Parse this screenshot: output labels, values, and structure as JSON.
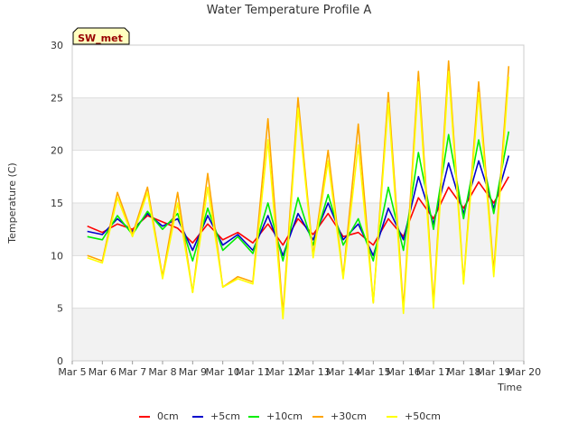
{
  "chart_data": {
    "type": "line",
    "title": "Water Temperature Profile A",
    "xlabel": "Time",
    "ylabel": "Temperature (C)",
    "ylim": [
      0,
      30
    ],
    "yticks": [
      0,
      5,
      10,
      15,
      20,
      25,
      30
    ],
    "xlim": [
      "Mar 5",
      "Mar 20"
    ],
    "xticks": [
      "Mar 5",
      "Mar 6",
      "Mar 7",
      "Mar 8",
      "Mar 9",
      "Mar 10",
      "Mar 11",
      "Mar 12",
      "Mar 13",
      "Mar 14",
      "Mar 15",
      "Mar 16",
      "Mar 17",
      "Mar 18",
      "Mar 19",
      "Mar 20"
    ],
    "grid": "horizontal bands",
    "legend_position": "bottom",
    "annotation": "SW_met",
    "series": [
      {
        "name": "0cm",
        "color": "#ff0000",
        "x": [
          "Mar 5 12:00",
          "Mar 6 00:00",
          "Mar 6 12:00",
          "Mar 7 00:00",
          "Mar 7 12:00",
          "Mar 8 00:00",
          "Mar 8 12:00",
          "Mar 9 00:00",
          "Mar 9 12:00",
          "Mar 10 00:00",
          "Mar 10 12:00",
          "Mar 11 00:00",
          "Mar 11 12:00",
          "Mar 12 00:00",
          "Mar 12 12:00",
          "Mar 13 00:00",
          "Mar 13 12:00",
          "Mar 14 00:00",
          "Mar 14 12:00",
          "Mar 15 00:00",
          "Mar 15 12:00",
          "Mar 16 00:00",
          "Mar 16 12:00",
          "Mar 17 00:00",
          "Mar 17 12:00",
          "Mar 18 00:00",
          "Mar 18 12:00",
          "Mar 19 00:00",
          "Mar 19 12:00"
        ],
        "y": [
          12.8,
          12.2,
          13.0,
          12.5,
          13.8,
          13.2,
          12.6,
          11.2,
          13.0,
          11.5,
          12.2,
          11.2,
          13.0,
          11.0,
          13.5,
          12.0,
          14.0,
          11.8,
          12.2,
          11.0,
          13.5,
          11.8,
          15.5,
          13.5,
          16.5,
          14.5,
          17.0,
          15.0,
          17.5
        ]
      },
      {
        "name": "+5cm",
        "color": "#0000cc",
        "x": [
          "Mar 5 12:00",
          "Mar 6 00:00",
          "Mar 6 12:00",
          "Mar 7 00:00",
          "Mar 7 12:00",
          "Mar 8 00:00",
          "Mar 8 12:00",
          "Mar 9 00:00",
          "Mar 9 12:00",
          "Mar 10 00:00",
          "Mar 10 12:00",
          "Mar 11 00:00",
          "Mar 11 12:00",
          "Mar 12 00:00",
          "Mar 12 12:00",
          "Mar 13 00:00",
          "Mar 13 12:00",
          "Mar 14 00:00",
          "Mar 14 12:00",
          "Mar 15 00:00",
          "Mar 15 12:00",
          "Mar 16 00:00",
          "Mar 16 12:00",
          "Mar 17 00:00",
          "Mar 17 12:00",
          "Mar 18 00:00",
          "Mar 18 12:00",
          "Mar 19 00:00",
          "Mar 19 12:00"
        ],
        "y": [
          12.3,
          12.0,
          13.5,
          12.3,
          14.0,
          12.8,
          13.5,
          10.5,
          13.8,
          11.0,
          12.0,
          10.5,
          13.8,
          10.0,
          14.0,
          11.5,
          15.0,
          11.5,
          13.0,
          10.0,
          14.5,
          11.5,
          17.5,
          13.0,
          18.8,
          14.0,
          19.0,
          14.5,
          19.5
        ]
      },
      {
        "name": "+10cm",
        "color": "#00ee00",
        "x": [
          "Mar 5 12:00",
          "Mar 6 00:00",
          "Mar 6 12:00",
          "Mar 7 00:00",
          "Mar 7 12:00",
          "Mar 8 00:00",
          "Mar 8 12:00",
          "Mar 9 00:00",
          "Mar 9 12:00",
          "Mar 10 00:00",
          "Mar 10 12:00",
          "Mar 11 00:00",
          "Mar 11 12:00",
          "Mar 12 00:00",
          "Mar 12 12:00",
          "Mar 13 00:00",
          "Mar 13 12:00",
          "Mar 14 00:00",
          "Mar 14 12:00",
          "Mar 15 00:00",
          "Mar 15 12:00",
          "Mar 16 00:00",
          "Mar 16 12:00",
          "Mar 17 00:00",
          "Mar 17 12:00",
          "Mar 18 00:00",
          "Mar 18 12:00",
          "Mar 19 00:00",
          "Mar 19 12:00"
        ],
        "y": [
          11.8,
          11.5,
          13.8,
          12.0,
          14.2,
          12.5,
          14.0,
          9.5,
          14.5,
          10.5,
          11.8,
          10.2,
          15.0,
          9.5,
          15.5,
          11.0,
          15.8,
          11.0,
          13.5,
          9.5,
          16.5,
          10.5,
          19.8,
          12.5,
          21.5,
          13.5,
          21.0,
          14.0,
          21.8
        ]
      },
      {
        "name": "+30cm",
        "color": "#ffa500",
        "x": [
          "Mar 5 12:00",
          "Mar 6 00:00",
          "Mar 6 12:00",
          "Mar 7 00:00",
          "Mar 7 12:00",
          "Mar 8 00:00",
          "Mar 8 12:00",
          "Mar 9 00:00",
          "Mar 9 12:00",
          "Mar 10 00:00",
          "Mar 10 12:00",
          "Mar 11 00:00",
          "Mar 11 12:00",
          "Mar 12 00:00",
          "Mar 12 12:00",
          "Mar 13 00:00",
          "Mar 13 12:00",
          "Mar 14 00:00",
          "Mar 14 12:00",
          "Mar 15 00:00",
          "Mar 15 12:00",
          "Mar 16 00:00",
          "Mar 16 12:00",
          "Mar 17 00:00",
          "Mar 17 12:00",
          "Mar 18 00:00",
          "Mar 18 12:00",
          "Mar 19 00:00",
          "Mar 19 12:00"
        ],
        "y": [
          10.0,
          9.5,
          16.0,
          12.0,
          16.5,
          8.0,
          16.0,
          6.5,
          17.8,
          7.0,
          8.0,
          7.5,
          23.0,
          4.5,
          25.0,
          10.0,
          20.0,
          8.0,
          22.5,
          5.5,
          25.5,
          5.0,
          27.5,
          5.5,
          28.5,
          7.5,
          26.5,
          8.5,
          28.0
        ]
      },
      {
        "name": "+50cm",
        "color": "#ffff00",
        "x": [
          "Mar 5 12:00",
          "Mar 6 00:00",
          "Mar 6 12:00",
          "Mar 7 00:00",
          "Mar 7 12:00",
          "Mar 8 00:00",
          "Mar 8 12:00",
          "Mar 9 00:00",
          "Mar 9 12:00",
          "Mar 10 00:00",
          "Mar 10 12:00",
          "Mar 11 00:00",
          "Mar 11 12:00",
          "Mar 12 00:00",
          "Mar 12 12:00",
          "Mar 13 00:00",
          "Mar 13 12:00",
          "Mar 14 00:00",
          "Mar 14 12:00",
          "Mar 15 00:00",
          "Mar 15 12:00",
          "Mar 16 00:00",
          "Mar 16 12:00",
          "Mar 17 00:00",
          "Mar 17 12:00",
          "Mar 18 00:00",
          "Mar 18 12:00",
          "Mar 19 00:00",
          "Mar 19 12:00"
        ],
        "y": [
          9.8,
          9.3,
          15.5,
          11.8,
          16.0,
          7.8,
          15.0,
          6.5,
          16.5,
          7.0,
          7.8,
          7.3,
          21.0,
          4.0,
          24.0,
          9.8,
          19.0,
          7.8,
          20.5,
          5.5,
          24.5,
          4.5,
          26.5,
          5.0,
          27.5,
          7.3,
          25.5,
          8.0,
          27.0
        ]
      }
    ]
  }
}
